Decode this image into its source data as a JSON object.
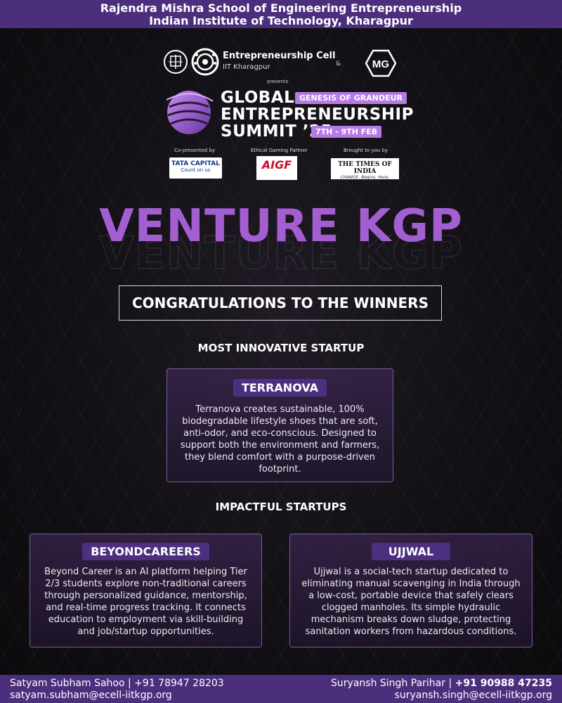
{
  "header": {
    "line1": "Rajendra Mishra School of Engineering Entrepreneurship",
    "line2": "Indian Institute of Technology, Kharagpur"
  },
  "logos": {
    "ecell_name": "Entrepreneurship Cell",
    "ecell_sub": "IIT Kharagpur",
    "ampersand": "&",
    "mg": "MG",
    "presents": "presents"
  },
  "summit": {
    "line1": "GLOBAL",
    "line2": "ENTREPRENEURSHIP",
    "line3": "SUMMIT ’25",
    "tagline": "GENESIS OF GRANDEUR",
    "dates": "7TH - 9TH FEB"
  },
  "sponsors": {
    "copresented_caption": "Co-presented by",
    "copresented_name": "TATA CAPITAL",
    "copresented_tag": "Count on us",
    "gaming_caption": "Ethical Gaming Partner",
    "gaming_name": "AIGF",
    "brought_caption": "Brought to you by",
    "brought_name": "THE TIMES OF INDIA",
    "brought_tag": "CHANGE. Begins. Here."
  },
  "title": "VENTURE KGP",
  "congrats": {
    "prefix": "CONGRATULATIONS TO THE ",
    "emphasis": "WINNERS"
  },
  "sections": {
    "innovative": "MOST INNOVATIVE STARTUP",
    "impactful": "IMPACTFUL STARTUPS"
  },
  "winners": {
    "terranova": {
      "name": "TERRANOVA",
      "description": "Terranova creates sustainable, 100% biodegradable lifestyle shoes that are soft, anti-odor, and eco-conscious. Designed to support both the environment and farmers, they blend comfort with a purpose-driven footprint."
    },
    "beyondcareers": {
      "name": "BEYONDCAREERS",
      "description": "Beyond Career is an AI platform helping Tier 2/3 students explore non-traditional careers through personalized guidance, mentorship, and real-time progress tracking. It connects education to employment via skill-building and job/startup opportunities."
    },
    "ujjwal": {
      "name": "UJJWAL",
      "description": "Ujjwal is a social-tech startup dedicated to eliminating manual scavenging in India through a low-cost, portable device that safely clears clogged manholes. Its simple hydraulic mechanism breaks down sludge, protecting sanitation workers from hazardous conditions."
    }
  },
  "footer": {
    "left_name": "Satyam Subham Sahoo | +91 78947 28203",
    "left_email": "satyam.subham@ecell-iitkgp.org",
    "right_name": "Suryansh Singh Parihar | ",
    "right_phone": "+91 90988 47235",
    "right_email": "suryansh.singh@ecell-iitkgp.org"
  },
  "colors": {
    "bar": "#4c2f7c",
    "title": "#a35fd2",
    "pill": "#b67be2",
    "badge": "#4d2f80"
  }
}
